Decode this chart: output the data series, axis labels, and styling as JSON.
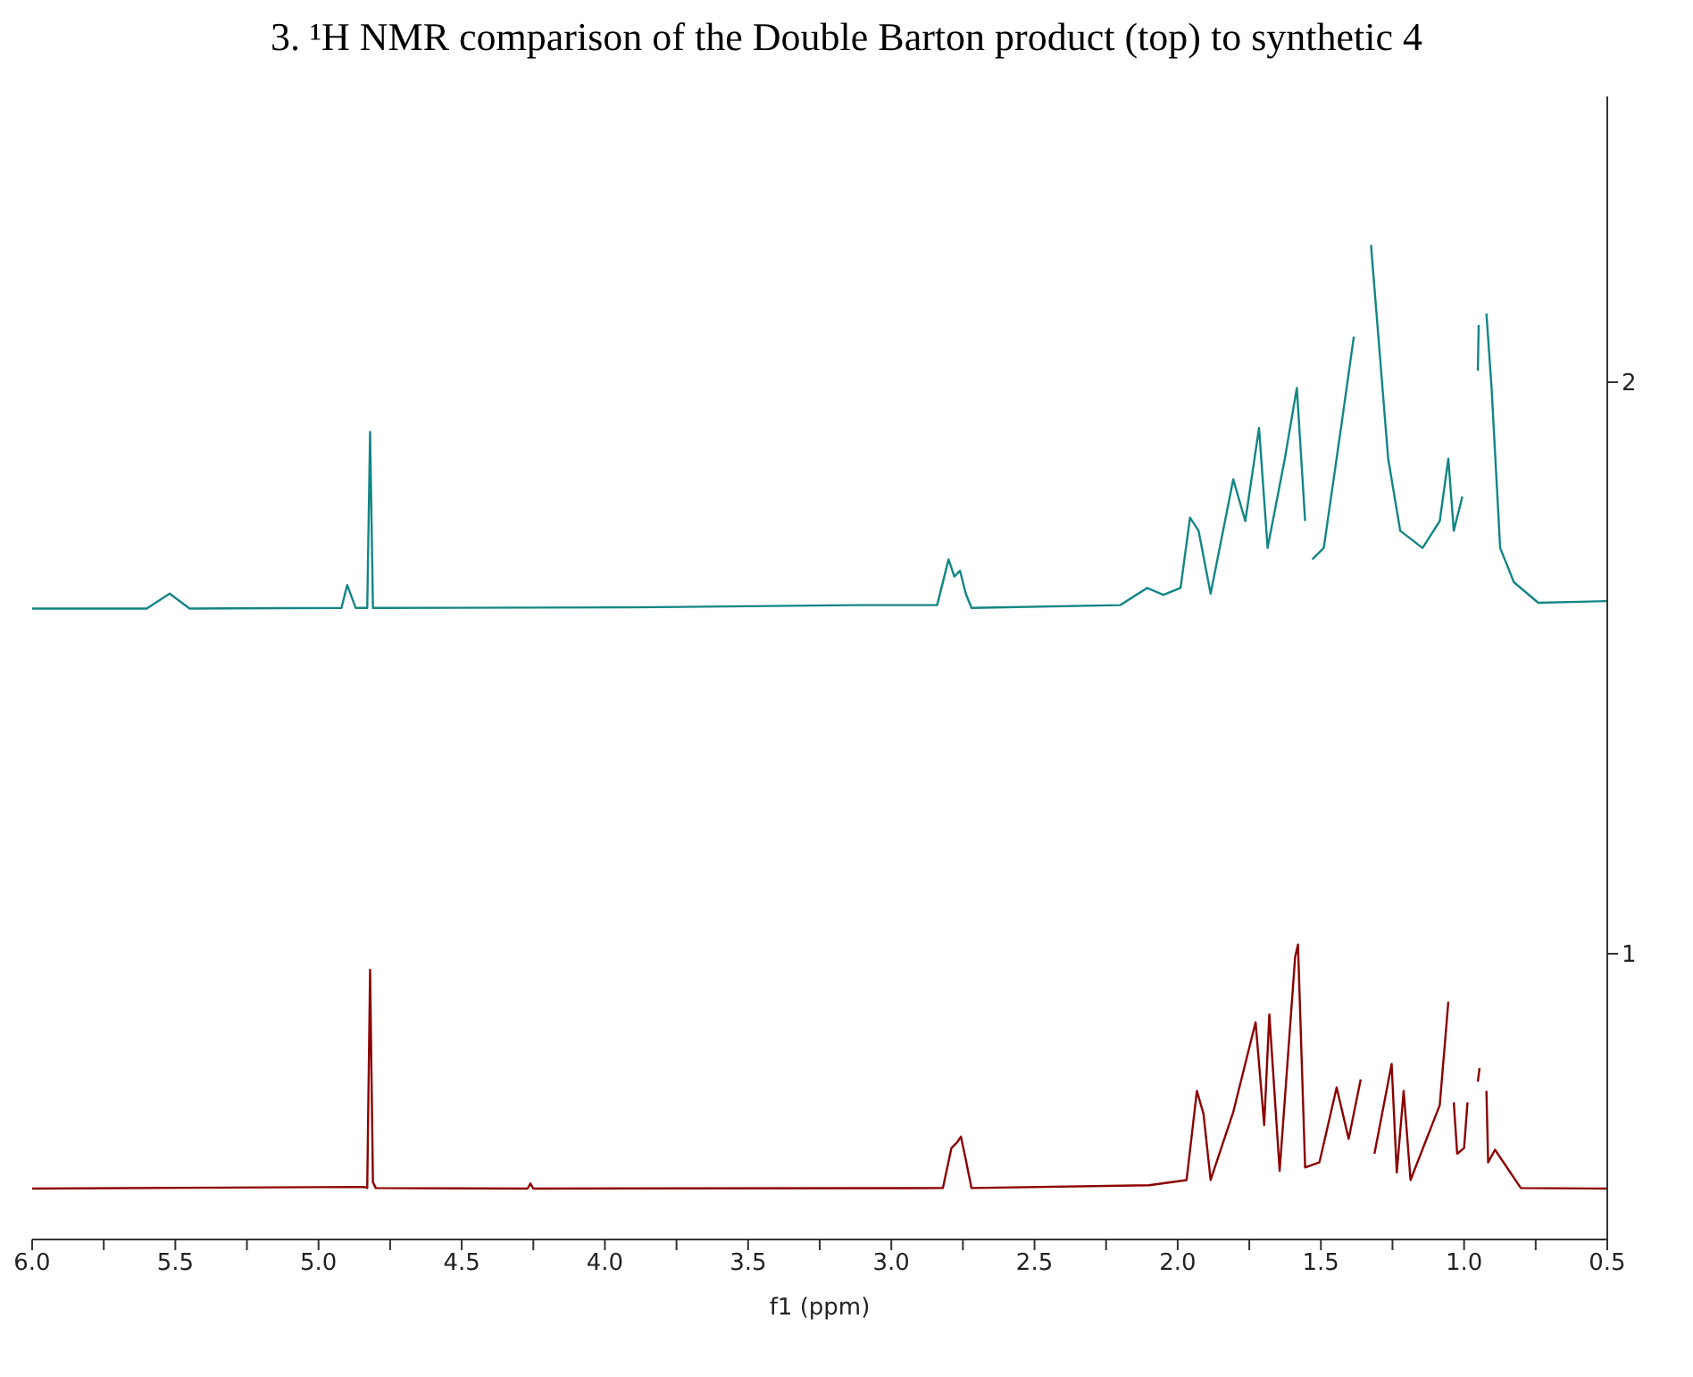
{
  "chart_data": {
    "type": "line",
    "title": "3. ¹H NMR comparison of the Double Barton product (top) to synthetic 4",
    "xlabel": "f1 (ppm)",
    "xlim": [
      6.0,
      0.5
    ],
    "xticks": [
      {
        "value": 6.0,
        "label": "6.0"
      },
      {
        "value": 5.75,
        "label": null
      },
      {
        "value": 5.5,
        "label": "5.5"
      },
      {
        "value": 5.25,
        "label": null
      },
      {
        "value": 5.0,
        "label": "5.0"
      },
      {
        "value": 4.75,
        "label": null
      },
      {
        "value": 4.5,
        "label": "4.5"
      },
      {
        "value": 4.25,
        "label": null
      },
      {
        "value": 4.0,
        "label": "4.0"
      },
      {
        "value": 3.75,
        "label": null
      },
      {
        "value": 3.5,
        "label": "3.5"
      },
      {
        "value": 3.25,
        "label": null
      },
      {
        "value": 3.0,
        "label": "3.0"
      },
      {
        "value": 2.75,
        "label": null
      },
      {
        "value": 2.5,
        "label": "2.5"
      },
      {
        "value": 2.25,
        "label": null
      },
      {
        "value": 2.0,
        "label": "2.0"
      },
      {
        "value": 1.75,
        "label": null
      },
      {
        "value": 1.5,
        "label": "1.5"
      },
      {
        "value": 1.25,
        "label": null
      },
      {
        "value": 1.0,
        "label": "1.0"
      },
      {
        "value": 0.75,
        "label": null
      },
      {
        "value": 0.5,
        "label": "0.5"
      }
    ],
    "ylim": [
      0.5,
      2.5
    ],
    "yticks": [
      1,
      2
    ],
    "series": [
      {
        "color": "#138585",
        "x": [
          6.0,
          5.6,
          5.52,
          5.45,
          4.92,
          4.9,
          4.87,
          4.83,
          4.82,
          4.81,
          4.79,
          3.9,
          3.12,
          2.84,
          2.8,
          2.78,
          2.76,
          2.74,
          2.72,
          2.2,
          2.107,
          2.05,
          1.99,
          1.957,
          1.927,
          1.885,
          1.806,
          1.764,
          1.716,
          1.686,
          1.626,
          1.584,
          1.555,
          1.55,
          1.53,
          1.49,
          1.427,
          1.385,
          1.355,
          1.325,
          1.265,
          1.223,
          1.145,
          1.085,
          1.055,
          1.036,
          1.006,
          0.976,
          0.952,
          0.949,
          0.946,
          0.922,
          0.904,
          0.874,
          0.826,
          0.741,
          0.5
        ],
        "values": [
          1.604,
          1.604,
          1.63,
          1.604,
          1.605,
          1.645,
          1.605,
          1.605,
          1.913,
          1.605,
          1.605,
          1.606,
          1.61,
          1.61,
          1.69,
          1.66,
          1.67,
          1.63,
          1.605,
          1.61,
          1.64,
          1.628,
          1.64,
          1.763,
          1.74,
          1.63,
          1.83,
          1.757,
          1.92,
          1.71,
          1.866,
          1.99,
          1.757,
          null,
          1.69,
          1.71,
          1.93,
          2.08,
          null,
          2.24,
          1.866,
          1.74,
          1.71,
          1.757,
          1.866,
          1.74,
          1.8,
          null,
          2.02,
          2.1,
          null,
          2.12,
          1.99,
          1.71,
          1.65,
          1.614,
          1.617
        ]
      },
      {
        "color": "#8b0000",
        "x": [
          6.0,
          4.84,
          4.83,
          4.82,
          4.81,
          4.8,
          4.27,
          4.26,
          4.25,
          2.82,
          2.79,
          2.77,
          2.757,
          2.74,
          2.72,
          2.1,
          1.969,
          1.933,
          1.91,
          1.885,
          1.806,
          1.728,
          1.698,
          1.68,
          1.644,
          1.59,
          1.58,
          1.555,
          1.505,
          1.445,
          1.403,
          1.361,
          1.337,
          1.313,
          1.253,
          1.235,
          1.211,
          1.187,
          1.085,
          1.055,
          1.042,
          1.036,
          1.024,
          1.0,
          0.988,
          0.976,
          0.952,
          0.946,
          0.94,
          0.922,
          0.916,
          0.892,
          0.802,
          0.5
        ],
        "values": [
          0.589,
          0.592,
          0.59,
          0.972,
          0.6,
          0.59,
          0.589,
          0.598,
          0.589,
          0.59,
          0.66,
          0.67,
          0.68,
          0.64,
          0.59,
          0.595,
          0.604,
          0.76,
          0.72,
          0.604,
          0.723,
          0.88,
          0.7,
          0.894,
          0.62,
          0.994,
          1.016,
          0.626,
          0.635,
          0.766,
          0.676,
          0.78,
          null,
          0.65,
          0.807,
          0.617,
          0.76,
          0.604,
          0.735,
          0.916,
          null,
          0.74,
          0.65,
          0.66,
          0.74,
          null,
          0.776,
          0.8,
          null,
          0.76,
          0.635,
          0.657,
          0.59,
          0.589
        ]
      }
    ]
  }
}
